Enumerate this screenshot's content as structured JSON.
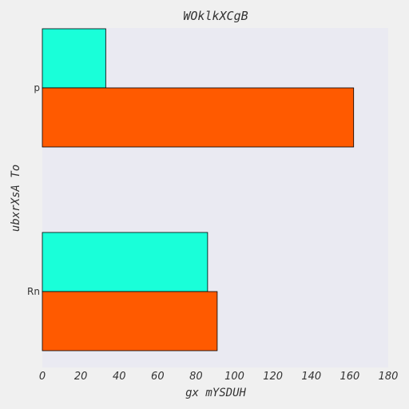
{
  "chart_data": {
    "type": "bar",
    "orientation": "horizontal",
    "title": "WOklkXCgB",
    "xlabel": "gx mYSDUH",
    "ylabel": "ubxrXsA To",
    "categories": [
      "p",
      "Rn"
    ],
    "series": [
      {
        "values": [
          33,
          86
        ]
      },
      {
        "values": [
          162,
          91
        ]
      }
    ],
    "xlim": [
      0,
      180
    ],
    "xticks": [
      0,
      20,
      40,
      60,
      80,
      100,
      120,
      140,
      160,
      180
    ],
    "grid": false,
    "legend": "none"
  },
  "colors": {
    "background": "#f0f0f0",
    "plot_background": "#eaeaf2",
    "series": [
      "#19ffd9",
      "#ff5a00"
    ],
    "bar_edge": "#000000"
  }
}
